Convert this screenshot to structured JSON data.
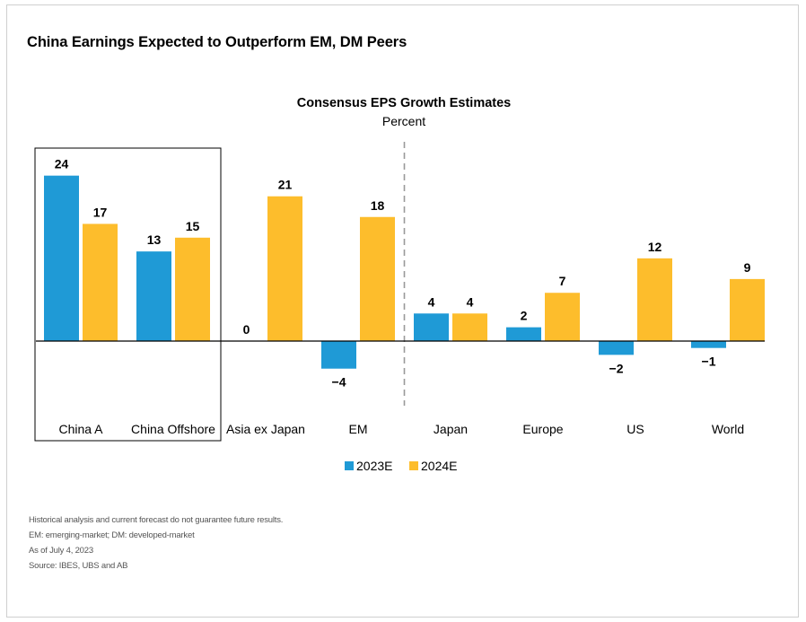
{
  "page": {
    "title": "China Earnings Expected to Outperform EM, DM Peers"
  },
  "chart_data": {
    "type": "bar",
    "title": "Consensus EPS Growth Estimates",
    "subtitle": "Percent",
    "categories": [
      "China A",
      "China Offshore",
      "Asia ex Japan",
      "EM",
      "Japan",
      "Europe",
      "US",
      "World"
    ],
    "series": [
      {
        "name": "2023E",
        "color": "#1f9ad6",
        "values": [
          24,
          13,
          0,
          -4,
          4,
          2,
          -2,
          -1
        ]
      },
      {
        "name": "2024E",
        "color": "#fdbd2c",
        "values": [
          17,
          15,
          21,
          18,
          4,
          7,
          12,
          9
        ]
      }
    ],
    "ylim": [
      -4,
      24
    ],
    "grid": false,
    "legend_position": "bottom",
    "highlighted_categories": [
      "China A",
      "China Offshore"
    ],
    "divider_after_category": "EM"
  },
  "footnotes": [
    "Historical analysis and current forecast do not guarantee future results.",
    "EM: emerging-market; DM: developed-market",
    "As of July 4, 2023",
    "Source: IBES, UBS and AB"
  ]
}
